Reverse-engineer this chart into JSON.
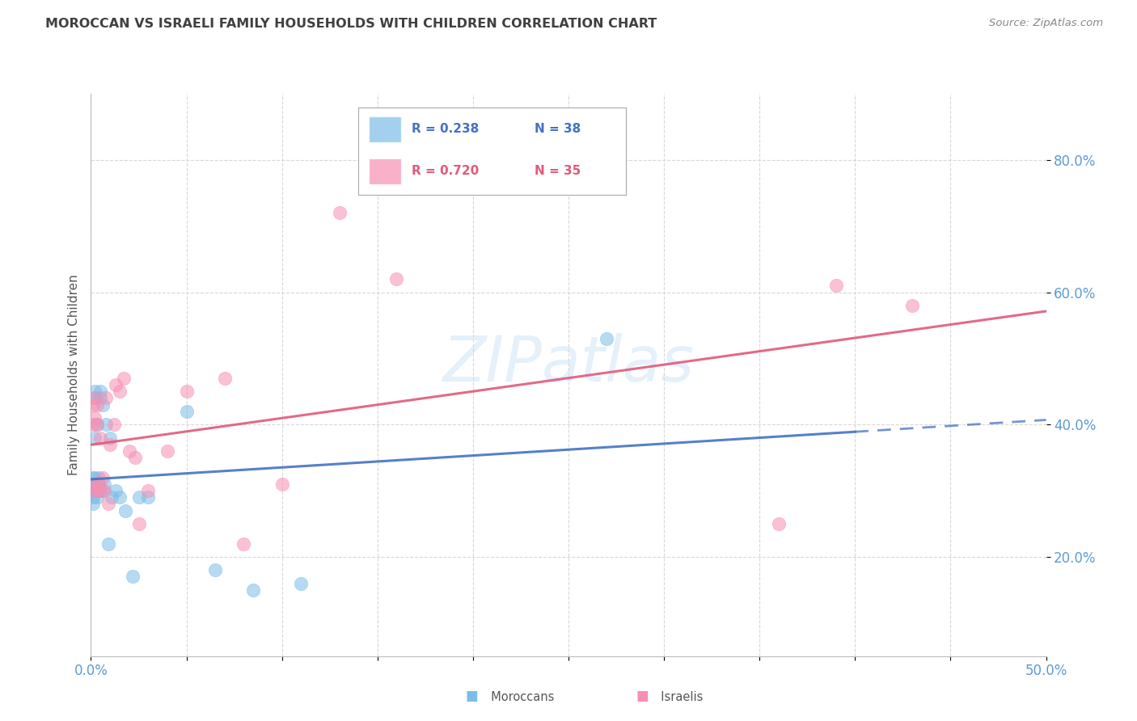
{
  "title": "MOROCCAN VS ISRAELI FAMILY HOUSEHOLDS WITH CHILDREN CORRELATION CHART",
  "source": "Source: ZipAtlas.com",
  "ylabel": "Family Households with Children",
  "watermark": "ZIPatlas",
  "xlim": [
    0.0,
    0.5
  ],
  "ylim": [
    0.05,
    0.9
  ],
  "yticks": [
    0.2,
    0.4,
    0.6,
    0.8
  ],
  "ytick_labels": [
    "20.0%",
    "40.0%",
    "60.0%",
    "80.0%"
  ],
  "xticks": [
    0.0,
    0.05,
    0.1,
    0.15,
    0.2,
    0.25,
    0.3,
    0.35,
    0.4,
    0.45,
    0.5
  ],
  "moroccan_color": "#7bbde8",
  "israeli_color": "#f78fb3",
  "moroccan_line_color": "#4472c4",
  "israeli_line_color": "#e05a7a",
  "r_moroccan": 0.238,
  "n_moroccan": 38,
  "r_israeli": 0.72,
  "n_israeli": 35,
  "moroccan_x": [
    0.001,
    0.001,
    0.001,
    0.001,
    0.001,
    0.002,
    0.002,
    0.002,
    0.002,
    0.002,
    0.002,
    0.003,
    0.003,
    0.003,
    0.003,
    0.004,
    0.004,
    0.004,
    0.005,
    0.005,
    0.006,
    0.006,
    0.007,
    0.008,
    0.009,
    0.01,
    0.011,
    0.013,
    0.015,
    0.018,
    0.022,
    0.025,
    0.03,
    0.05,
    0.065,
    0.085,
    0.11,
    0.27
  ],
  "moroccan_y": [
    0.31,
    0.3,
    0.29,
    0.32,
    0.28,
    0.44,
    0.45,
    0.3,
    0.31,
    0.32,
    0.38,
    0.3,
    0.29,
    0.31,
    0.4,
    0.31,
    0.3,
    0.32,
    0.44,
    0.45,
    0.43,
    0.3,
    0.31,
    0.4,
    0.22,
    0.38,
    0.29,
    0.3,
    0.29,
    0.27,
    0.17,
    0.29,
    0.29,
    0.42,
    0.18,
    0.15,
    0.16,
    0.53
  ],
  "israeli_x": [
    0.001,
    0.001,
    0.001,
    0.002,
    0.002,
    0.002,
    0.003,
    0.003,
    0.003,
    0.004,
    0.005,
    0.005,
    0.006,
    0.007,
    0.008,
    0.009,
    0.01,
    0.012,
    0.013,
    0.015,
    0.017,
    0.02,
    0.023,
    0.025,
    0.03,
    0.04,
    0.05,
    0.07,
    0.08,
    0.1,
    0.13,
    0.16,
    0.36,
    0.39,
    0.43
  ],
  "israeli_y": [
    0.3,
    0.4,
    0.43,
    0.31,
    0.41,
    0.44,
    0.3,
    0.4,
    0.43,
    0.31,
    0.3,
    0.38,
    0.32,
    0.3,
    0.44,
    0.28,
    0.37,
    0.4,
    0.46,
    0.45,
    0.47,
    0.36,
    0.35,
    0.25,
    0.3,
    0.36,
    0.45,
    0.47,
    0.22,
    0.31,
    0.72,
    0.62,
    0.25,
    0.61,
    0.58
  ],
  "background_color": "#ffffff",
  "grid_color": "#d8d8d8",
  "axis_label_color": "#5b9bd5",
  "title_color": "#404040"
}
